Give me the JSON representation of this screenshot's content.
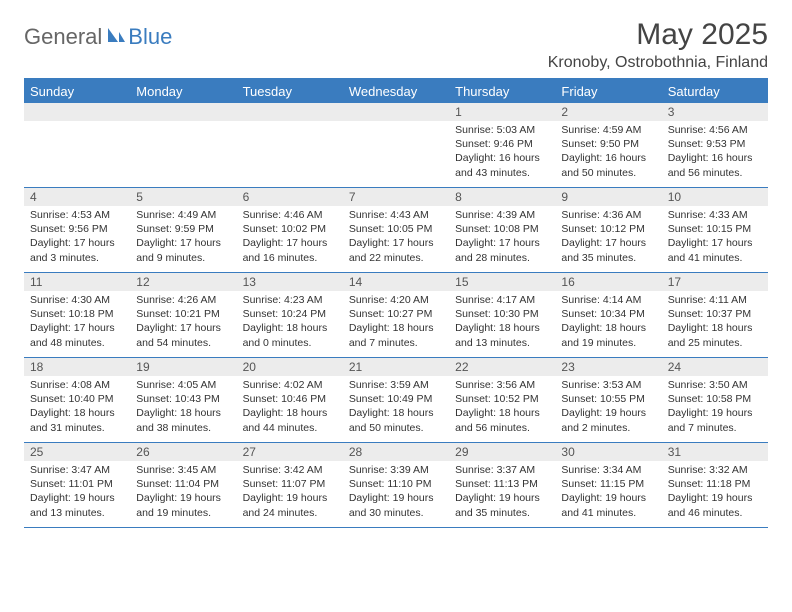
{
  "logo": {
    "general": "General",
    "blue": "Blue"
  },
  "title": "May 2025",
  "location": "Kronoby, Ostrobothnia, Finland",
  "colors": {
    "accent": "#3a7cbf",
    "header_text": "#ffffff",
    "daynum_bg": "#ececec",
    "text": "#333333",
    "background": "#ffffff"
  },
  "day_names": [
    "Sunday",
    "Monday",
    "Tuesday",
    "Wednesday",
    "Thursday",
    "Friday",
    "Saturday"
  ],
  "weeks": [
    [
      null,
      null,
      null,
      null,
      {
        "n": "1",
        "sr": "Sunrise: 5:03 AM",
        "ss": "Sunset: 9:46 PM",
        "dl": "Daylight: 16 hours and 43 minutes."
      },
      {
        "n": "2",
        "sr": "Sunrise: 4:59 AM",
        "ss": "Sunset: 9:50 PM",
        "dl": "Daylight: 16 hours and 50 minutes."
      },
      {
        "n": "3",
        "sr": "Sunrise: 4:56 AM",
        "ss": "Sunset: 9:53 PM",
        "dl": "Daylight: 16 hours and 56 minutes."
      }
    ],
    [
      {
        "n": "4",
        "sr": "Sunrise: 4:53 AM",
        "ss": "Sunset: 9:56 PM",
        "dl": "Daylight: 17 hours and 3 minutes."
      },
      {
        "n": "5",
        "sr": "Sunrise: 4:49 AM",
        "ss": "Sunset: 9:59 PM",
        "dl": "Daylight: 17 hours and 9 minutes."
      },
      {
        "n": "6",
        "sr": "Sunrise: 4:46 AM",
        "ss": "Sunset: 10:02 PM",
        "dl": "Daylight: 17 hours and 16 minutes."
      },
      {
        "n": "7",
        "sr": "Sunrise: 4:43 AM",
        "ss": "Sunset: 10:05 PM",
        "dl": "Daylight: 17 hours and 22 minutes."
      },
      {
        "n": "8",
        "sr": "Sunrise: 4:39 AM",
        "ss": "Sunset: 10:08 PM",
        "dl": "Daylight: 17 hours and 28 minutes."
      },
      {
        "n": "9",
        "sr": "Sunrise: 4:36 AM",
        "ss": "Sunset: 10:12 PM",
        "dl": "Daylight: 17 hours and 35 minutes."
      },
      {
        "n": "10",
        "sr": "Sunrise: 4:33 AM",
        "ss": "Sunset: 10:15 PM",
        "dl": "Daylight: 17 hours and 41 minutes."
      }
    ],
    [
      {
        "n": "11",
        "sr": "Sunrise: 4:30 AM",
        "ss": "Sunset: 10:18 PM",
        "dl": "Daylight: 17 hours and 48 minutes."
      },
      {
        "n": "12",
        "sr": "Sunrise: 4:26 AM",
        "ss": "Sunset: 10:21 PM",
        "dl": "Daylight: 17 hours and 54 minutes."
      },
      {
        "n": "13",
        "sr": "Sunrise: 4:23 AM",
        "ss": "Sunset: 10:24 PM",
        "dl": "Daylight: 18 hours and 0 minutes."
      },
      {
        "n": "14",
        "sr": "Sunrise: 4:20 AM",
        "ss": "Sunset: 10:27 PM",
        "dl": "Daylight: 18 hours and 7 minutes."
      },
      {
        "n": "15",
        "sr": "Sunrise: 4:17 AM",
        "ss": "Sunset: 10:30 PM",
        "dl": "Daylight: 18 hours and 13 minutes."
      },
      {
        "n": "16",
        "sr": "Sunrise: 4:14 AM",
        "ss": "Sunset: 10:34 PM",
        "dl": "Daylight: 18 hours and 19 minutes."
      },
      {
        "n": "17",
        "sr": "Sunrise: 4:11 AM",
        "ss": "Sunset: 10:37 PM",
        "dl": "Daylight: 18 hours and 25 minutes."
      }
    ],
    [
      {
        "n": "18",
        "sr": "Sunrise: 4:08 AM",
        "ss": "Sunset: 10:40 PM",
        "dl": "Daylight: 18 hours and 31 minutes."
      },
      {
        "n": "19",
        "sr": "Sunrise: 4:05 AM",
        "ss": "Sunset: 10:43 PM",
        "dl": "Daylight: 18 hours and 38 minutes."
      },
      {
        "n": "20",
        "sr": "Sunrise: 4:02 AM",
        "ss": "Sunset: 10:46 PM",
        "dl": "Daylight: 18 hours and 44 minutes."
      },
      {
        "n": "21",
        "sr": "Sunrise: 3:59 AM",
        "ss": "Sunset: 10:49 PM",
        "dl": "Daylight: 18 hours and 50 minutes."
      },
      {
        "n": "22",
        "sr": "Sunrise: 3:56 AM",
        "ss": "Sunset: 10:52 PM",
        "dl": "Daylight: 18 hours and 56 minutes."
      },
      {
        "n": "23",
        "sr": "Sunrise: 3:53 AM",
        "ss": "Sunset: 10:55 PM",
        "dl": "Daylight: 19 hours and 2 minutes."
      },
      {
        "n": "24",
        "sr": "Sunrise: 3:50 AM",
        "ss": "Sunset: 10:58 PM",
        "dl": "Daylight: 19 hours and 7 minutes."
      }
    ],
    [
      {
        "n": "25",
        "sr": "Sunrise: 3:47 AM",
        "ss": "Sunset: 11:01 PM",
        "dl": "Daylight: 19 hours and 13 minutes."
      },
      {
        "n": "26",
        "sr": "Sunrise: 3:45 AM",
        "ss": "Sunset: 11:04 PM",
        "dl": "Daylight: 19 hours and 19 minutes."
      },
      {
        "n": "27",
        "sr": "Sunrise: 3:42 AM",
        "ss": "Sunset: 11:07 PM",
        "dl": "Daylight: 19 hours and 24 minutes."
      },
      {
        "n": "28",
        "sr": "Sunrise: 3:39 AM",
        "ss": "Sunset: 11:10 PM",
        "dl": "Daylight: 19 hours and 30 minutes."
      },
      {
        "n": "29",
        "sr": "Sunrise: 3:37 AM",
        "ss": "Sunset: 11:13 PM",
        "dl": "Daylight: 19 hours and 35 minutes."
      },
      {
        "n": "30",
        "sr": "Sunrise: 3:34 AM",
        "ss": "Sunset: 11:15 PM",
        "dl": "Daylight: 19 hours and 41 minutes."
      },
      {
        "n": "31",
        "sr": "Sunrise: 3:32 AM",
        "ss": "Sunset: 11:18 PM",
        "dl": "Daylight: 19 hours and 46 minutes."
      }
    ]
  ]
}
